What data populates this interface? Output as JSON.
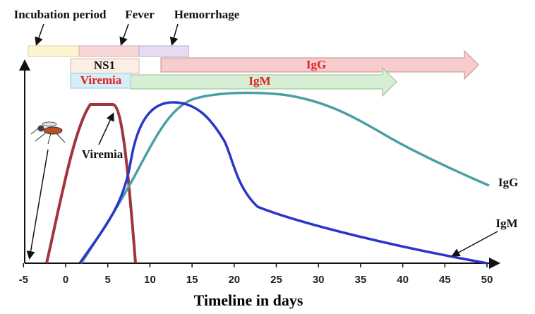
{
  "phases": {
    "incubation": "Incubation period",
    "fever": "Fever",
    "hemorrhage": "Hemorrhage"
  },
  "markers": {
    "ns1": "NS1",
    "viremia": "Viremia",
    "igg": "IgG",
    "igm": "IgM"
  },
  "curves": {
    "viremia": "Viremia",
    "igg": "IgG",
    "igm": "IgM"
  },
  "axis": {
    "title": "Timeline in days",
    "ticks": [
      -5,
      0,
      5,
      10,
      15,
      20,
      25,
      30,
      35,
      40,
      45,
      50
    ]
  }
}
